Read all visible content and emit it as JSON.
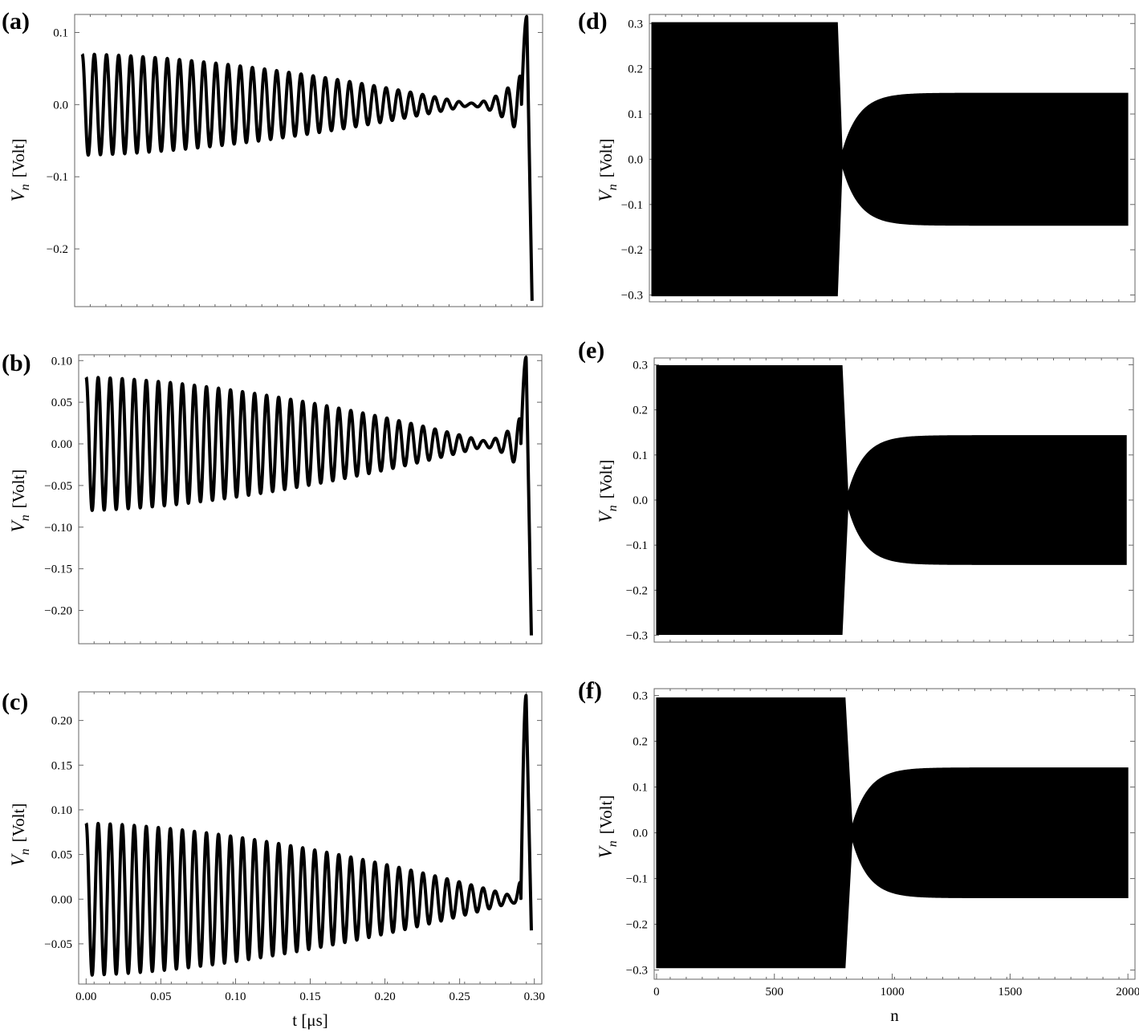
{
  "chart_data": [
    {
      "panel": "(a)",
      "type": "line",
      "xlim": [
        -0.005,
        0.305
      ],
      "ylim": [
        -0.28,
        0.125
      ],
      "yticks": [
        "0.1",
        "0.0",
        "-0.1",
        "-0.2"
      ],
      "yticks_values": [
        0.1,
        0.0,
        -0.1,
        -0.2
      ],
      "ylabel": "V",
      "ylabel_sub": "n",
      "ylabel_unit": "[Volt]",
      "xlabel": "",
      "xticks": [],
      "signal": {
        "amp_start": 0.07,
        "amp_end": 0.002,
        "cycles": 37,
        "t_null": 0.255,
        "final_spike": 0.122,
        "final_drop": -0.272
      }
    },
    {
      "panel": "(b)",
      "type": "line",
      "xlim": [
        -0.005,
        0.305
      ],
      "ylim": [
        -0.24,
        0.107
      ],
      "yticks": [
        "0.10",
        "0.05",
        "0.00",
        "-0.05",
        "-0.10",
        "-0.15",
        "-0.20"
      ],
      "yticks_values": [
        0.1,
        0.05,
        0.0,
        -0.05,
        -0.1,
        -0.15,
        -0.2
      ],
      "ylabel": "V",
      "ylabel_sub": "n",
      "ylabel_unit": "[Volt]",
      "xlabel": "",
      "xticks": [],
      "signal": {
        "amp_start": 0.08,
        "amp_end": 0.004,
        "cycles": 37,
        "t_null": 0.265,
        "final_spike": 0.104,
        "final_drop": -0.23
      }
    },
    {
      "panel": "(c)",
      "type": "line",
      "xlim": [
        -0.005,
        0.305
      ],
      "ylim": [
        -0.095,
        0.232
      ],
      "yticks": [
        "0.20",
        "0.15",
        "0.10",
        "0.05",
        "0.00",
        "-0.05"
      ],
      "yticks_values": [
        0.2,
        0.15,
        0.1,
        0.05,
        0.0,
        -0.05
      ],
      "xticks": [
        "0.00",
        "0.05",
        "0.10",
        "0.15",
        "0.20",
        "0.25",
        "0.30"
      ],
      "xticks_values": [
        0.0,
        0.05,
        0.1,
        0.15,
        0.2,
        0.25,
        0.3
      ],
      "ylabel": "V",
      "ylabel_sub": "n",
      "ylabel_unit": "[Volt]",
      "xlabel": "t",
      "xlabel_unit": "[μs]",
      "signal": {
        "amp_start": 0.085,
        "amp_end": 0.004,
        "cycles": 37,
        "t_null": 0.285,
        "final_spike": 0.228,
        "final_drop": -0.035
      }
    },
    {
      "panel": "(d)",
      "type": "area",
      "xlim": [
        -10,
        2030
      ],
      "ylim": [
        -0.315,
        0.32
      ],
      "yticks": [
        "0.3",
        "0.2",
        "0.1",
        "0.0",
        "-0.1",
        "-0.2",
        "-0.3"
      ],
      "yticks_values": [
        0.3,
        0.2,
        0.1,
        0.0,
        -0.1,
        -0.2,
        -0.3
      ],
      "xticks": [],
      "ylabel": "V",
      "ylabel_sub": "n",
      "ylabel_unit": "[Volt]",
      "xlabel": "",
      "envelope": {
        "phase1_end": 780,
        "amp1": 0.302,
        "neck_n": 800,
        "neck_amp": 0.015,
        "amp2": 0.146,
        "n_end": 2000
      }
    },
    {
      "panel": "(e)",
      "type": "area",
      "xlim": [
        -10,
        2030
      ],
      "ylim": [
        -0.315,
        0.315
      ],
      "yticks": [
        "0.3",
        "0.2",
        "0.1",
        "0.0",
        "-0.1",
        "-0.2",
        "-0.3"
      ],
      "yticks_values": [
        0.3,
        0.2,
        0.1,
        0.0,
        -0.1,
        -0.2,
        -0.3
      ],
      "xticks": [],
      "ylabel": "V",
      "ylabel_sub": "n",
      "ylabel_unit": "[Volt]",
      "xlabel": "",
      "envelope": {
        "phase1_end": 790,
        "amp1": 0.298,
        "neck_n": 815,
        "neck_amp": 0.015,
        "amp2": 0.143,
        "n_end": 2000
      }
    },
    {
      "panel": "(f)",
      "type": "area",
      "xlim": [
        -10,
        2030
      ],
      "ylim": [
        -0.32,
        0.315
      ],
      "yticks": [
        "0.3",
        "0.2",
        "0.1",
        "0.0",
        "-0.1",
        "-0.2",
        "-0.3"
      ],
      "yticks_values": [
        0.3,
        0.2,
        0.1,
        0.0,
        -0.1,
        -0.2,
        -0.3
      ],
      "xticks": [
        "0",
        "500",
        "1000",
        "1500",
        "2000"
      ],
      "xticks_values": [
        0,
        500,
        1000,
        1500,
        2000
      ],
      "ylabel": "V",
      "ylabel_sub": "n",
      "ylabel_unit": "[Volt]",
      "xlabel": "n",
      "envelope": {
        "phase1_end": 800,
        "amp1": 0.295,
        "neck_n": 830,
        "neck_amp": 0.015,
        "amp2": 0.142,
        "n_end": 2000
      }
    }
  ]
}
